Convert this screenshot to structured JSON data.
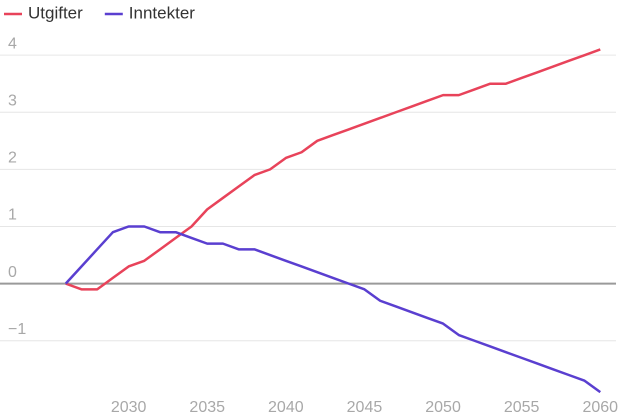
{
  "chart_data": {
    "type": "line",
    "x": [
      2026,
      2027,
      2028,
      2029,
      2030,
      2031,
      2032,
      2033,
      2034,
      2035,
      2036,
      2037,
      2038,
      2039,
      2040,
      2041,
      2042,
      2043,
      2044,
      2045,
      2046,
      2047,
      2048,
      2049,
      2050,
      2051,
      2052,
      2053,
      2054,
      2055,
      2056,
      2057,
      2058,
      2059,
      2060
    ],
    "series": [
      {
        "name": "Utgifter",
        "color": "#e8435a",
        "values": [
          0,
          -0.1,
          -0.1,
          0.1,
          0.3,
          0.4,
          0.6,
          0.8,
          1.0,
          1.3,
          1.5,
          1.7,
          1.9,
          2.0,
          2.2,
          2.3,
          2.5,
          2.6,
          2.7,
          2.8,
          2.9,
          3.0,
          3.1,
          3.2,
          3.3,
          3.3,
          3.4,
          3.5,
          3.5,
          3.6,
          3.7,
          3.8,
          3.9,
          4.0,
          4.1
        ]
      },
      {
        "name": "Inntekter",
        "color": "#5a3fd0",
        "values": [
          0,
          0.3,
          0.6,
          0.9,
          1.0,
          1.0,
          0.9,
          0.9,
          0.8,
          0.7,
          0.7,
          0.6,
          0.6,
          0.5,
          0.4,
          0.3,
          0.2,
          0.1,
          0.0,
          -0.1,
          -0.3,
          -0.4,
          -0.5,
          -0.6,
          -0.7,
          -0.9,
          -1.0,
          -1.1,
          -1.2,
          -1.3,
          -1.4,
          -1.5,
          -1.6,
          -1.7,
          -1.9
        ]
      }
    ],
    "xlim": [
      2025,
      2061
    ],
    "xticks": [
      2030,
      2035,
      2040,
      2045,
      2050,
      2055,
      2060
    ],
    "ylim": [
      -1.95,
      4.3
    ],
    "yticks": [
      {
        "value": -1,
        "label": "−1"
      },
      0,
      1,
      2,
      3,
      4
    ],
    "grid": true,
    "legend": "top-left"
  }
}
